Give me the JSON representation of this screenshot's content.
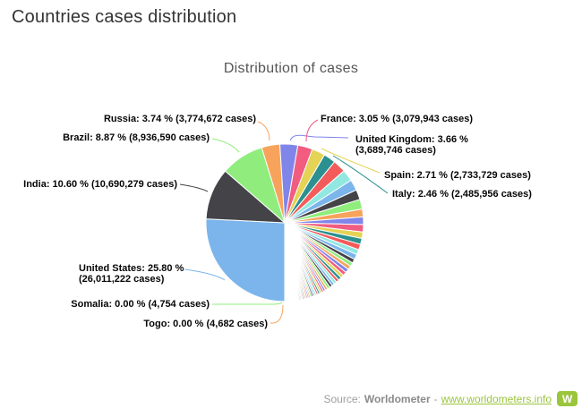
{
  "page": {
    "title": "Countries cases distribution"
  },
  "chart_data": {
    "type": "pie",
    "title": "Distribution of cases",
    "start_angle_deg": 180,
    "direction": "clockwise",
    "legend": "none",
    "palette": [
      "#7cb5ec",
      "#434348",
      "#90ed7d",
      "#f7a35c",
      "#8085e9",
      "#f15c80",
      "#e4d354",
      "#2b908f",
      "#f45b5b",
      "#91e8e1"
    ],
    "slices_labeled_head": [
      {
        "name": "United States",
        "percent": 25.8,
        "cases": 26011222,
        "label_line1": "United States: 25.80 %",
        "label_line2": "(26,011,222 cases)"
      },
      {
        "name": "India",
        "percent": 10.6,
        "cases": 10690279,
        "label_line1": "India: 10.60 % (10,690,279 cases)"
      },
      {
        "name": "Brazil",
        "percent": 8.87,
        "cases": 8936590,
        "label_line1": "Brazil: 8.87 % (8,936,590 cases)"
      },
      {
        "name": "Russia",
        "percent": 3.74,
        "cases": 3774672,
        "label_line1": "Russia: 3.74 % (3,774,672 cases)"
      },
      {
        "name": "United Kingdom",
        "percent": 3.66,
        "cases": 3689746,
        "label_line1": "United Kingdom: 3.66 %",
        "label_line2": "(3,689,746 cases)"
      },
      {
        "name": "France",
        "percent": 3.05,
        "cases": 3079943,
        "label_line1": "France: 3.05 % (3,079,943 cases)"
      },
      {
        "name": "Spain",
        "percent": 2.71,
        "cases": 2733729,
        "label_line1": "Spain: 2.71 % (2,733,729 cases)"
      },
      {
        "name": "Italy",
        "percent": 2.46,
        "cases": 2485956,
        "label_line1": "Italy: 2.46 % (2,485,956 cases)"
      }
    ],
    "slices_unlabeled_weights": [
      2.45,
      2.21,
      2.06,
      1.9,
      1.84,
      1.5,
      1.44,
      1.41,
      1.22,
      1.13,
      1.07,
      0.98,
      0.97,
      0.77,
      0.73,
      0.72,
      0.72,
      0.71,
      0.63,
      0.62,
      0.56,
      0.54,
      0.53,
      0.52,
      0.52,
      0.47,
      0.41,
      0.39,
      0.37,
      0.36,
      0.35,
      0.33,
      0.32,
      0.3,
      0.29,
      0.28,
      0.27,
      0.26,
      0.25,
      0.24,
      0.23,
      0.22,
      0.21,
      0.2,
      0.19,
      0.18,
      0.17,
      0.16,
      0.15,
      0.14,
      0.13,
      0.125,
      0.12,
      0.115,
      0.11,
      0.105,
      0.1,
      0.095,
      0.09,
      0.085,
      0.08,
      0.075,
      0.07,
      0.065,
      0.06,
      0.055,
      0.05,
      0.045,
      0.04,
      0.035,
      0.03,
      0.025,
      0.02,
      0.015
    ],
    "slices_labeled_tail": [
      {
        "name": "Somalia",
        "percent": 0.0,
        "cases": 4754,
        "label_line1": "Somalia: 0.00 % (4,754 cases)"
      },
      {
        "name": "Togo",
        "percent": 0.0,
        "cases": 4682,
        "label_line1": "Togo: 0.00 % (4,682 cases)"
      }
    ]
  },
  "footer": {
    "source_prefix": "Source:",
    "source_name": "Worldometer",
    "separator": "-",
    "link_text": "www.worldometers.info",
    "logo_letter": "W",
    "link_color": "#9bc53d"
  }
}
